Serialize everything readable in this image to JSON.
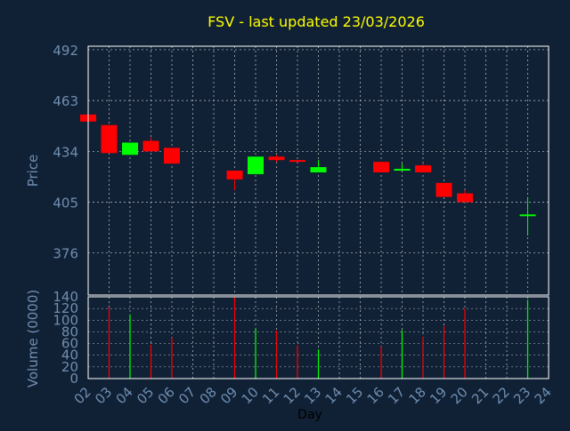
{
  "chart_data": [
    {
      "type": "candlestick",
      "title": "FSV - last updated 23/03/2026",
      "ylabel": "Price",
      "ylim": [
        352,
        494
      ],
      "yticks": [
        376,
        405,
        434,
        463,
        492
      ],
      "grid": true,
      "candles": [
        {
          "day": "02",
          "open": 455,
          "close": 451,
          "high": 455,
          "low": 451
        },
        {
          "day": "03",
          "open": 449,
          "close": 433,
          "high": 449,
          "low": 433
        },
        {
          "day": "04",
          "open": 432,
          "close": 439,
          "high": 439,
          "low": 432
        },
        {
          "day": "05",
          "open": 440,
          "close": 434,
          "high": 442,
          "low": 434
        },
        {
          "day": "06",
          "open": 436,
          "close": 427,
          "high": 436,
          "low": 427
        },
        {
          "day": "09",
          "open": 423,
          "close": 418,
          "high": 423,
          "low": 412
        },
        {
          "day": "10",
          "open": 421,
          "close": 431,
          "high": 431,
          "low": 421
        },
        {
          "day": "11",
          "open": 431,
          "close": 429,
          "high": 432,
          "low": 428
        },
        {
          "day": "12",
          "open": 429,
          "close": 428,
          "high": 429,
          "low": 428
        },
        {
          "day": "13",
          "open": 422,
          "close": 425,
          "high": 429,
          "low": 422
        },
        {
          "day": "16",
          "open": 428,
          "close": 422,
          "high": 428,
          "low": 422
        },
        {
          "day": "17",
          "open": 423,
          "close": 424,
          "high": 427,
          "low": 423
        },
        {
          "day": "18",
          "open": 426,
          "close": 422,
          "high": 427,
          "low": 422
        },
        {
          "day": "19",
          "open": 416,
          "close": 408,
          "high": 416,
          "low": 408
        },
        {
          "day": "20",
          "open": 410,
          "close": 405,
          "high": 412,
          "low": 405
        },
        {
          "day": "23",
          "open": 397,
          "close": 398,
          "high": 408,
          "low": 386
        }
      ]
    },
    {
      "type": "bar",
      "ylabel": "Volume (0000)",
      "xlabel": "Day",
      "ylim": [
        0,
        140
      ],
      "yticks": [
        0,
        20,
        40,
        60,
        80,
        100,
        120,
        140
      ],
      "x_ticks": [
        "02",
        "03",
        "04",
        "05",
        "06",
        "07",
        "08",
        "09",
        "10",
        "11",
        "12",
        "13",
        "14",
        "15",
        "16",
        "17",
        "18",
        "19",
        "20",
        "21",
        "22",
        "23",
        "24"
      ],
      "bars": [
        {
          "day": "03",
          "value": 122,
          "dir": "down"
        },
        {
          "day": "04",
          "value": 110,
          "dir": "up"
        },
        {
          "day": "05",
          "value": 58,
          "dir": "down"
        },
        {
          "day": "06",
          "value": 70,
          "dir": "down"
        },
        {
          "day": "09",
          "value": 140,
          "dir": "down"
        },
        {
          "day": "10",
          "value": 85,
          "dir": "up"
        },
        {
          "day": "11",
          "value": 82,
          "dir": "down"
        },
        {
          "day": "12",
          "value": 57,
          "dir": "down"
        },
        {
          "day": "13",
          "value": 50,
          "dir": "up"
        },
        {
          "day": "16",
          "value": 55,
          "dir": "down"
        },
        {
          "day": "17",
          "value": 83,
          "dir": "up"
        },
        {
          "day": "18",
          "value": 72,
          "dir": "down"
        },
        {
          "day": "19",
          "value": 90,
          "dir": "down"
        },
        {
          "day": "20",
          "value": 120,
          "dir": "down"
        },
        {
          "day": "23",
          "value": 135,
          "dir": "up"
        }
      ]
    }
  ],
  "colors": {
    "background": "#102035",
    "up": "#00ff00",
    "down": "#ff0000",
    "text": "#6f8fb0",
    "title": "#ffff00",
    "grid": "#c8c8c8"
  }
}
